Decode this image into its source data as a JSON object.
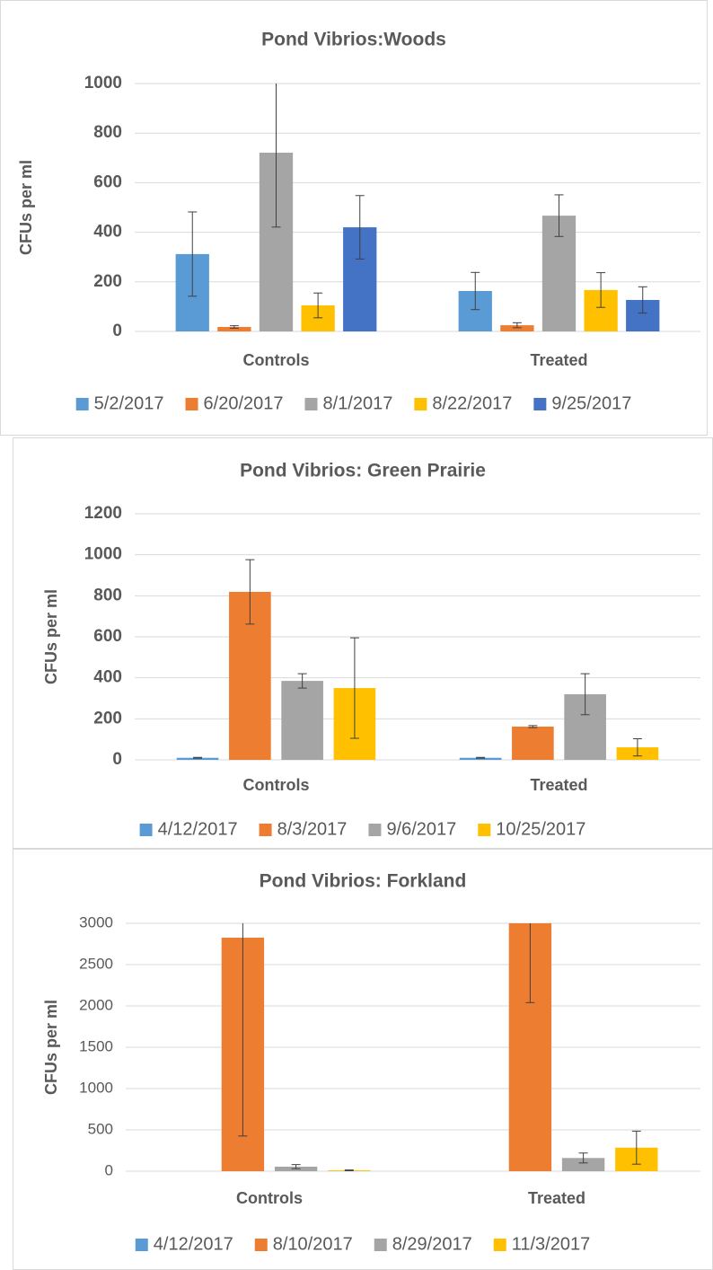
{
  "chart_data": [
    {
      "type": "bar",
      "title": "Pond Vibrios:Woods",
      "y_label": "CFUs per ml",
      "categories": [
        "Controls",
        "Treated"
      ],
      "series": [
        {
          "name": "5/2/2017",
          "color": "#5b9bd5",
          "values": [
            312,
            163
          ],
          "errors": [
            170,
            75
          ]
        },
        {
          "name": "6/20/2017",
          "color": "#ed7d31",
          "values": [
            18,
            25
          ],
          "errors": [
            5,
            10
          ]
        },
        {
          "name": "8/1/2017",
          "color": "#a5a5a5",
          "values": [
            721,
            467
          ],
          "errors": [
            300,
            84
          ]
        },
        {
          "name": "8/22/2017",
          "color": "#ffc000",
          "values": [
            105,
            167
          ],
          "errors": [
            50,
            70
          ]
        },
        {
          "name": "9/25/2017",
          "color": "#4472c4",
          "values": [
            420,
            127
          ],
          "errors": [
            128,
            53
          ]
        }
      ],
      "ylim": [
        0,
        1000
      ],
      "yticks": [
        0,
        200,
        400,
        600,
        800,
        1000
      ],
      "grid": true,
      "legend": "bottom"
    },
    {
      "type": "bar",
      "title": "Pond Vibrios: Green Prairie",
      "y_label": "CFUs per ml",
      "categories": [
        "Controls",
        "Treated"
      ],
      "series": [
        {
          "name": "4/12/2017",
          "color": "#5b9bd5",
          "values": [
            10,
            10
          ],
          "errors": [
            2,
            2
          ]
        },
        {
          "name": "8/3/2017",
          "color": "#ed7d31",
          "values": [
            819,
            162
          ],
          "errors": [
            157,
            5
          ]
        },
        {
          "name": "9/6/2017",
          "color": "#a5a5a5",
          "values": [
            385,
            320
          ],
          "errors": [
            35,
            100
          ]
        },
        {
          "name": "10/25/2017",
          "color": "#ffc000",
          "values": [
            350,
            61
          ],
          "errors": [
            245,
            42
          ]
        }
      ],
      "ylim": [
        0,
        1200
      ],
      "yticks": [
        0,
        200,
        400,
        600,
        800,
        1000,
        1200
      ],
      "grid": true,
      "legend": "bottom"
    },
    {
      "type": "bar",
      "title": "Pond Vibrios: Forkland",
      "y_label": "CFUs per ml",
      "categories": [
        "Controls",
        "Treated"
      ],
      "series": [
        {
          "name": "4/12/2017",
          "color": "#5b9bd5",
          "values": [
            0,
            0
          ],
          "errors": [
            0,
            0
          ]
        },
        {
          "name": "8/10/2017",
          "color": "#ed7d31",
          "values": [
            2826,
            3000
          ],
          "errors": [
            2400,
            960
          ]
        },
        {
          "name": "8/29/2017",
          "color": "#a5a5a5",
          "values": [
            55,
            160
          ],
          "errors": [
            25,
            60
          ]
        },
        {
          "name": "11/3/2017",
          "color": "#ffc000",
          "values": [
            10,
            285
          ],
          "errors": [
            5,
            200
          ]
        }
      ],
      "ylim": [
        0,
        3000
      ],
      "yticks": [
        0,
        500,
        1000,
        1500,
        2000,
        2500,
        3000
      ],
      "grid": true,
      "legend": "bottom"
    }
  ]
}
